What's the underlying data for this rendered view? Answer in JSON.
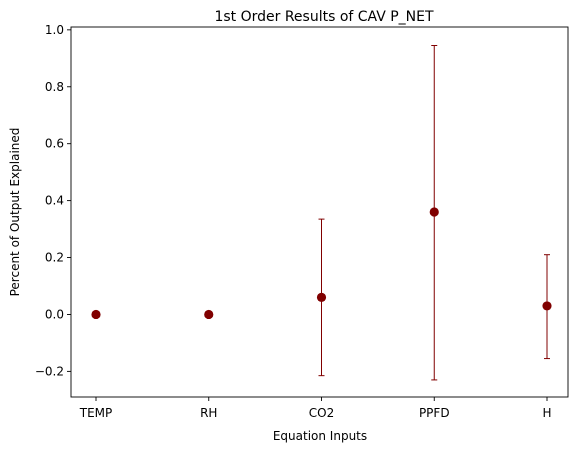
{
  "chart_data": {
    "type": "scatter",
    "title": "1st Order Results of CAV P_NET",
    "xlabel": "Equation Inputs",
    "ylabel": "Percent of Output Explained",
    "categories": [
      "TEMP",
      "RH",
      "CO2",
      "PPFD",
      "H"
    ],
    "values": [
      0.0,
      0.0,
      0.06,
      0.36,
      0.03
    ],
    "error_low": [
      0.0,
      0.0,
      -0.215,
      -0.23,
      -0.155
    ],
    "error_high": [
      0.0,
      0.0,
      0.335,
      0.945,
      0.21
    ],
    "ylim": [
      -0.29,
      1.01
    ],
    "yticks": [
      -0.2,
      0.0,
      0.2,
      0.4,
      0.6,
      0.8,
      1.0
    ],
    "ytick_labels": [
      "−0.2",
      "0.0",
      "0.2",
      "0.4",
      "0.6",
      "0.8",
      "1.0"
    ],
    "grid": false,
    "marker_color": "#800000",
    "errorbar_color": "#800000"
  }
}
